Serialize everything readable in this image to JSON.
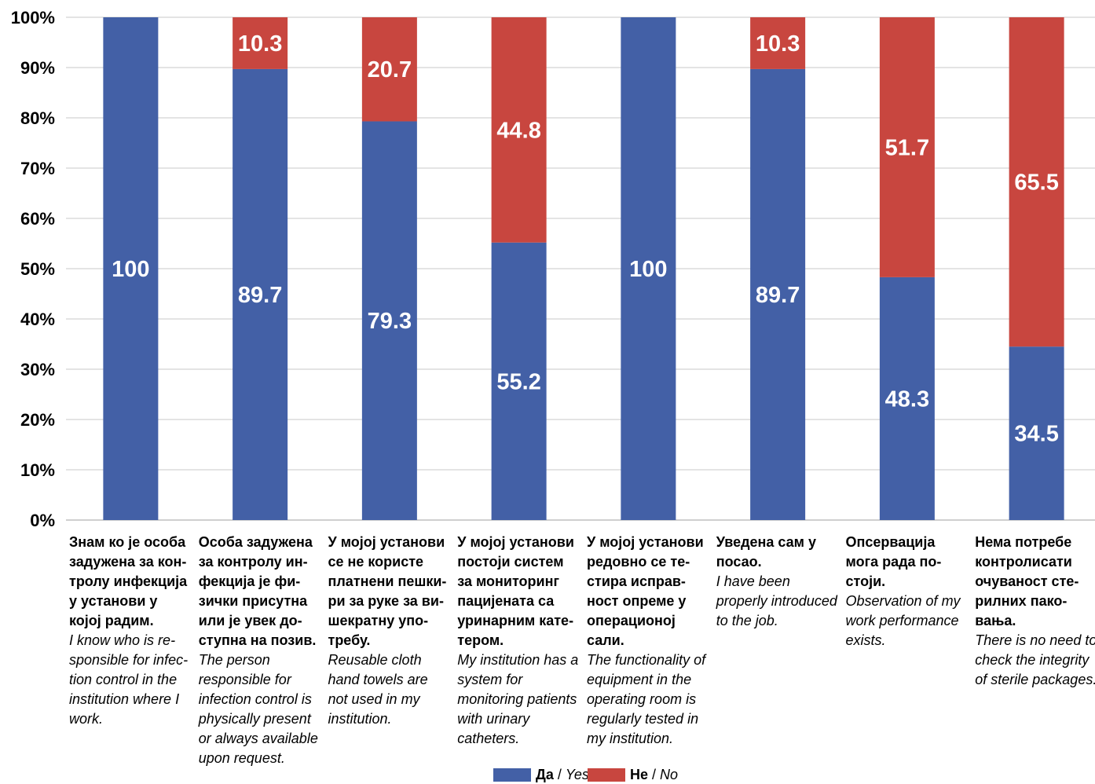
{
  "chart_data": {
    "type": "bar",
    "stacked": true,
    "orientation": "vertical",
    "ylim": [
      0,
      100
    ],
    "yticks": [
      "0%",
      "10%",
      "20%",
      "30%",
      "40%",
      "50%",
      "60%",
      "70%",
      "80%",
      "90%",
      "100%"
    ],
    "grid": true,
    "legend_position": "bottom-center",
    "categories": [
      {
        "sr": "Знам ко је особа задужена за кон­тролу инфекција у установи у којој радим.",
        "en": "I know who is re­sponsible for infec­tion control in the institution where I work."
      },
      {
        "sr": "Особа задужена за контролу ин­фекција је фи­зички присутна или је увек до­ступна на позив.",
        "en": "The person responsible for infection control is physically present or always available upon request."
      },
      {
        "sr": "У мојој установи се не користе платнени пешки­ри за руке за ви­шекратну упо­требу.",
        "en": "Reusable cloth hand towels are not used in my institution."
      },
      {
        "sr": "У мојој установи постоји систем за мониторинг пацијената са уринарним кате­тером.",
        "en": "My institution has a system for monitoring patients with urinary catheters."
      },
      {
        "sr": "У мојој установи редовно се те­стира исправ­ност опреме у операционој сали.",
        "en": "The functionality of equipment in the operating room is regularly tested in my institution."
      },
      {
        "sr": "Уведена сам у посао.",
        "en": "I have been properly introduced to the job."
      },
      {
        "sr": "Опсервација мога рада по­стоји.",
        "en": "Observation of my work performance exists."
      },
      {
        "sr": "Нема потребе контролисати очуваност сте­рилних пако­вања.",
        "en": "There is no need to check the integrity of sterile packages."
      }
    ],
    "series": [
      {
        "name_sr": "Да",
        "name_en": "Yes",
        "color": "#4360a6",
        "values": [
          100,
          89.7,
          79.3,
          55.2,
          100,
          89.7,
          48.3,
          34.5
        ],
        "labels": [
          "100",
          "89.7",
          "79.3",
          "55.2",
          "100",
          "89.7",
          "48.3",
          "34.5"
        ]
      },
      {
        "name_sr": "Не",
        "name_en": "No",
        "color": "#c8463f",
        "values": [
          0,
          10.3,
          20.7,
          44.8,
          0,
          10.3,
          51.7,
          65.5
        ],
        "labels": [
          "",
          "10.3",
          "20.7",
          "44.8",
          "",
          "10.3",
          "51.7",
          "65.5"
        ]
      }
    ]
  },
  "legend": {
    "yes_sr": "Да",
    "yes_en": "Yes",
    "no_sr": "Не",
    "no_en": "No",
    "separator": " / "
  }
}
